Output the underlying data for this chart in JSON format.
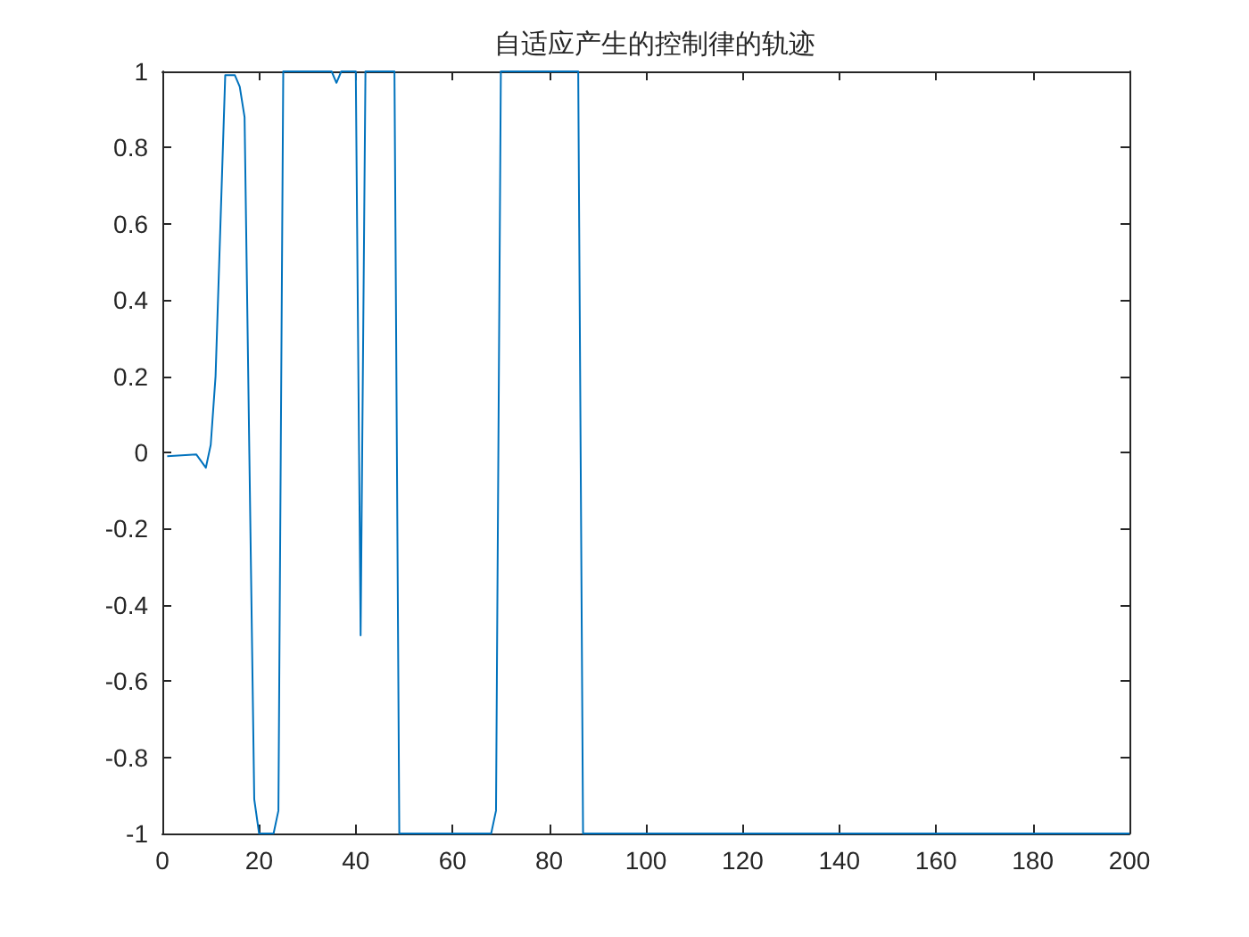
{
  "chart_data": {
    "type": "line",
    "title": "自适应产生的控制律的轨迹",
    "x": [
      1,
      7,
      9,
      10,
      11,
      13,
      15,
      16,
      17,
      19,
      20,
      23,
      24,
      25,
      35,
      36,
      37,
      40,
      41,
      42,
      48,
      49,
      68,
      69,
      70,
      86,
      87,
      200
    ],
    "series": [
      {
        "color": "#0072bd",
        "values": [
          -0.01,
          -0.005,
          -0.04,
          0.02,
          0.2,
          0.99,
          0.99,
          0.96,
          0.88,
          -0.91,
          -1,
          -1,
          -0.94,
          1,
          1,
          0.97,
          1,
          1,
          -0.48,
          1,
          1,
          -1,
          -1,
          -0.94,
          1,
          1,
          -1,
          -1
        ]
      }
    ],
    "xlim": [
      0,
      200
    ],
    "xticks": [
      0,
      20,
      40,
      60,
      80,
      100,
      120,
      140,
      160,
      180,
      200
    ],
    "ylim": [
      -1,
      1
    ],
    "yticks": [
      -1,
      -0.8,
      -0.6,
      -0.4,
      -0.2,
      0,
      0.2,
      0.4,
      0.6,
      0.8,
      1
    ],
    "grid": false,
    "marker": "none",
    "line_style": "solid"
  }
}
